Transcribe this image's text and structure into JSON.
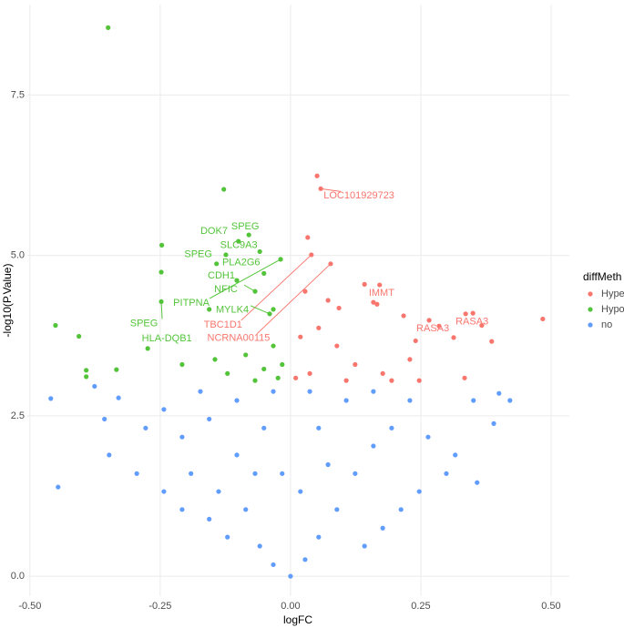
{
  "chart_data": {
    "type": "scatter",
    "x_label": "logFC",
    "y_label": "-log10(P.Value)",
    "legend_title": "diffMeth",
    "legend_position": "right",
    "grid": true,
    "xlim": [
      -0.505,
      0.535
    ],
    "ylim": [
      -0.31,
      8.91
    ],
    "xticks": [
      {
        "value": -0.5,
        "label": "-0.50"
      },
      {
        "value": -0.25,
        "label": "-0.25"
      },
      {
        "value": 0,
        "label": "0.00"
      },
      {
        "value": 0.25,
        "label": "0.25"
      },
      {
        "value": 0.5,
        "label": "0.50"
      }
    ],
    "yticks": [
      {
        "value": 0,
        "label": "0.0"
      },
      {
        "value": 2.5,
        "label": "2.5"
      },
      {
        "value": 5,
        "label": "5.0"
      },
      {
        "value": 7.5,
        "label": "7.5"
      }
    ],
    "series": [
      {
        "name": "Hyper",
        "color": "#F8766D",
        "x": [
          0.051,
          0.058,
          0.033,
          0.04,
          0.077,
          0.142,
          0.171,
          0.159,
          0.166,
          0.217,
          0.266,
          0.285,
          0.336,
          0.35,
          0.367,
          0.313,
          0.24,
          0.484,
          0.386,
          0.229,
          0.177,
          0.124,
          0.089,
          0.054,
          0.019,
          0.028,
          0.072,
          0.037,
          0.01,
          0.107,
          0.194,
          0.247,
          0.334,
          0.093
        ],
        "y": [
          6.24,
          6.04,
          5.28,
          5.01,
          4.87,
          4.55,
          4.54,
          4.27,
          4.24,
          4.06,
          3.99,
          3.9,
          4.09,
          4.1,
          3.91,
          3.72,
          3.67,
          4.01,
          3.66,
          3.38,
          3.16,
          3.3,
          3.59,
          3.87,
          3.73,
          4.44,
          4.3,
          3.16,
          3.09,
          3.05,
          3.05,
          3.05,
          3.09,
          4.18
        ]
      },
      {
        "name": "Hypo",
        "color": "#53C43A",
        "x": [
          -0.35,
          -0.128,
          -0.247,
          -0.248,
          -0.451,
          -0.406,
          -0.392,
          -0.392,
          -0.334,
          -0.248,
          -0.274,
          -0.156,
          -0.1,
          -0.08,
          -0.059,
          -0.124,
          -0.103,
          -0.068,
          -0.04,
          -0.033,
          -0.086,
          -0.121,
          -0.051,
          -0.016,
          -0.024,
          -0.068,
          -0.145,
          -0.208,
          -0.033,
          -0.051,
          -0.142,
          -0.019
        ],
        "y": [
          8.55,
          6.03,
          5.16,
          4.74,
          3.91,
          3.74,
          3.21,
          3.11,
          3.22,
          4.28,
          3.55,
          4.16,
          5.22,
          5.32,
          5.06,
          5.01,
          4.61,
          4.44,
          4.09,
          3.59,
          3.45,
          3.16,
          3.23,
          3.3,
          3.09,
          3.05,
          3.38,
          3.3,
          4.16,
          4.72,
          4.87,
          4.94
        ]
      },
      {
        "name": "no",
        "color": "#619CFF",
        "x": [
          -0.46,
          -0.446,
          -0.376,
          -0.33,
          -0.357,
          -0.348,
          -0.278,
          -0.243,
          -0.295,
          -0.208,
          -0.191,
          -0.156,
          -0.138,
          -0.103,
          -0.086,
          -0.059,
          -0.033,
          0,
          0.028,
          0.054,
          0.089,
          0.124,
          0.159,
          0.194,
          0.229,
          0.264,
          0.316,
          0.351,
          0.421,
          0.4,
          0.39,
          0.358,
          0.299,
          0.247,
          0.212,
          0.177,
          0.142,
          -0.121,
          -0.156,
          -0.208,
          -0.243,
          -0.103,
          -0.033,
          0.037,
          0.107,
          -0.051,
          0.054,
          -0.016,
          0.019,
          -0.068,
          0.072,
          -0.173,
          0.159
        ],
        "y": [
          2.77,
          1.39,
          2.96,
          2.78,
          2.45,
          1.89,
          2.31,
          2.6,
          1.6,
          2.17,
          1.6,
          2.45,
          1.32,
          1.89,
          1.04,
          0.47,
          0.18,
          0,
          0.26,
          0.61,
          1.04,
          1.6,
          2.03,
          2.31,
          2.74,
          2.17,
          1.89,
          2.74,
          2.74,
          2.85,
          2.38,
          1.46,
          1.6,
          1.32,
          1.04,
          0.75,
          0.47,
          0.61,
          0.89,
          1.04,
          1.32,
          2.74,
          2.88,
          2.88,
          2.74,
          2.31,
          2.31,
          1.6,
          1.32,
          1.6,
          1.74,
          2.88,
          2.88
        ]
      }
    ],
    "annotations": [
      {
        "text": "LOC101929723",
        "color": "#F8766D",
        "x": 0.058,
        "y": 6.04
      },
      {
        "text": "IMMT",
        "color": "#F8766D",
        "x": 0.159,
        "y": 4.27
      },
      {
        "text": "RASA3",
        "color": "#F8766D",
        "x": 0.266,
        "y": 3.99
      },
      {
        "text": "RASA3",
        "color": "#F8766D",
        "x": 0.336,
        "y": 4.09
      },
      {
        "text": "TBC1D1",
        "color": "#F8766D",
        "x": 0.04,
        "y": 5.01
      },
      {
        "text": "NCRNA00115",
        "color": "#F8766D",
        "x": 0.077,
        "y": 4.87
      },
      {
        "text": "DOK7",
        "color": "#53C43A",
        "x": -0.124,
        "y": 5.01
      },
      {
        "text": "SPEG",
        "color": "#53C43A",
        "x": -0.08,
        "y": 5.32
      },
      {
        "text": "SLC9A3",
        "color": "#53C43A",
        "x": -0.059,
        "y": 5.06
      },
      {
        "text": "SPEG",
        "color": "#53C43A",
        "x": -0.142,
        "y": 4.87
      },
      {
        "text": "PLA2G6",
        "color": "#53C43A",
        "x": -0.051,
        "y": 4.72
      },
      {
        "text": "CDH1",
        "color": "#53C43A",
        "x": -0.103,
        "y": 4.61
      },
      {
        "text": "NFIC",
        "color": "#53C43A",
        "x": -0.068,
        "y": 4.44
      },
      {
        "text": "PITPNA",
        "color": "#53C43A",
        "x": -0.019,
        "y": 4.94
      },
      {
        "text": "MYLK4",
        "color": "#53C43A",
        "x": -0.04,
        "y": 4.09
      },
      {
        "text": "SPEG",
        "color": "#53C43A",
        "x": -0.248,
        "y": 4.28
      },
      {
        "text": "HLA-DQB1",
        "color": "#53C43A",
        "x": -0.274,
        "y": 3.55
      }
    ]
  }
}
